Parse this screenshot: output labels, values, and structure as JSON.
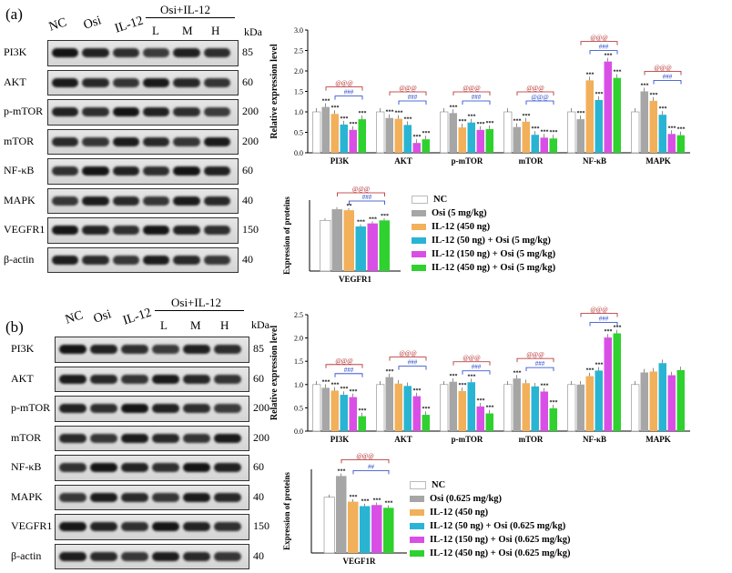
{
  "colors": {
    "nc": "#ffffff",
    "osi": "#a6a6a6",
    "il12": "#f2b05a",
    "low": "#2ab4d3",
    "mid": "#d94fe6",
    "high": "#2fd12f",
    "red_bracket": "#b02020",
    "blue_bracket": "#1a3cc9"
  },
  "panel_a": {
    "label": "(a)",
    "lanes": [
      "NC",
      "Osi",
      "IL-12",
      "L",
      "M",
      "H"
    ],
    "group_label": "Osi+IL-12",
    "kda_label": "kDa",
    "blots": [
      {
        "name": "PI3K",
        "kda": "85"
      },
      {
        "name": "AKT",
        "kda": "60"
      },
      {
        "name": "p-mTOR",
        "kda": "200"
      },
      {
        "name": "mTOR",
        "kda": "200"
      },
      {
        "name": "NF-κB",
        "kda": "60"
      },
      {
        "name": "MAPK",
        "kda": "40"
      },
      {
        "name": "VEGFR1",
        "kda": "150"
      },
      {
        "name": "β-actin",
        "kda": "40"
      }
    ],
    "legend": [
      "NC",
      "Osi (5 mg/kg)",
      "IL-12 (450 ng)",
      "IL-12 (50 ng) + Osi (5 mg/kg)",
      "IL-12 (150 ng) + Osi (5 mg/kg)",
      "IL-12 (450 ng) + Osi (5 mg/kg)"
    ]
  },
  "panel_b": {
    "label": "(b)",
    "lanes": [
      "NC",
      "Osi",
      "IL-12",
      "L",
      "M",
      "H"
    ],
    "group_label": "Osi+IL-12",
    "kda_label": "kDa",
    "blots": [
      {
        "name": "PI3K",
        "kda": "85"
      },
      {
        "name": "AKT",
        "kda": "60"
      },
      {
        "name": "p-mTOR",
        "kda": "200"
      },
      {
        "name": "mTOR",
        "kda": "200"
      },
      {
        "name": "NF-κB",
        "kda": "60"
      },
      {
        "name": "MAPK",
        "kda": "40"
      },
      {
        "name": "VEGFR1",
        "kda": "150"
      },
      {
        "name": "β-actin",
        "kda": "40"
      }
    ],
    "legend": [
      "NC",
      "Osi (0.625 mg/kg)",
      "IL-12 (450 ng)",
      "IL-12 (50 ng) + Osi (0.625 mg/kg)",
      "IL-12 (150 ng) + Osi (0.625 mg/kg)",
      "IL-12 (450 ng) + Osi (0.625 mg/kg)"
    ]
  },
  "chart_data": [
    {
      "id": "a_main",
      "type": "bar",
      "ylabel": "Relative expression level",
      "ylim": [
        0,
        3.0
      ],
      "yticks": [
        "0.0",
        "0.5",
        "1.0",
        "1.5",
        "2.0",
        "2.5",
        "3.0"
      ],
      "categories": [
        "PI3K",
        "AKT",
        "p-mTOR",
        "mTOR",
        "NF-κB",
        "MAPK"
      ],
      "series": [
        {
          "name": "NC",
          "values": [
            1.0,
            1.0,
            1.0,
            1.0,
            1.0,
            1.0
          ]
        },
        {
          "name": "Osi",
          "values": [
            1.12,
            0.85,
            0.97,
            0.63,
            0.82,
            1.5
          ]
        },
        {
          "name": "IL-12",
          "values": [
            0.95,
            0.83,
            0.62,
            0.76,
            1.77,
            1.27
          ]
        },
        {
          "name": "L",
          "values": [
            0.69,
            0.68,
            0.74,
            0.44,
            1.29,
            0.93
          ]
        },
        {
          "name": "M",
          "values": [
            0.56,
            0.24,
            0.56,
            0.37,
            2.23,
            0.46
          ]
        },
        {
          "name": "H",
          "values": [
            0.82,
            0.33,
            0.58,
            0.35,
            1.83,
            0.43
          ]
        }
      ],
      "red_marks": [
        "@@@",
        "@@@",
        "@@@",
        "@@@",
        "@@@",
        "@@@"
      ],
      "blue_marks": [
        "###",
        "###",
        "###",
        "@@@",
        "###",
        "###"
      ],
      "bar_stars": [
        [
          "",
          "***",
          "***",
          "***",
          "***",
          "***"
        ],
        [
          "",
          "***",
          "***",
          "***",
          "***",
          "***"
        ],
        [
          "",
          "***",
          "***",
          "***",
          "***",
          "***"
        ],
        [
          "",
          "***",
          "***",
          "***",
          "***",
          "***"
        ],
        [
          "",
          "***",
          "***",
          "***",
          "***",
          "***"
        ],
        [
          "",
          "***",
          "***",
          "***",
          "***",
          "***"
        ]
      ]
    },
    {
      "id": "a_vegfr",
      "type": "bar",
      "ylabel": "Expression of proteins",
      "categories": [
        "VEGFR1"
      ],
      "ylim": [
        0,
        1.4
      ],
      "series": [
        {
          "name": "NC",
          "values": [
            1.0
          ]
        },
        {
          "name": "Osi",
          "values": [
            1.22
          ]
        },
        {
          "name": "IL-12",
          "values": [
            1.2
          ]
        },
        {
          "name": "L",
          "values": [
            0.88
          ]
        },
        {
          "name": "M",
          "values": [
            0.94
          ]
        },
        {
          "name": "H",
          "values": [
            1.0
          ]
        }
      ],
      "red_marks": [
        "@@@"
      ],
      "blue_marks": [
        "###"
      ],
      "bar_stars": [
        [
          "",
          "",
          "**",
          "***",
          "***",
          "***"
        ]
      ]
    },
    {
      "id": "b_main",
      "type": "bar",
      "ylabel": "Relative expression level",
      "ylim": [
        0,
        2.5
      ],
      "yticks": [
        "0.0",
        "0.5",
        "1.0",
        "1.5",
        "2.0",
        "2.5"
      ],
      "categories": [
        "PI3K",
        "AKT",
        "p-mTOR",
        "mTOR",
        "NF-κB",
        "MAPK"
      ],
      "series": [
        {
          "name": "NC",
          "values": [
            1.0,
            1.0,
            1.0,
            1.0,
            1.0,
            1.0
          ]
        },
        {
          "name": "Osi",
          "values": [
            0.93,
            1.16,
            1.06,
            1.13,
            1.0,
            1.26
          ]
        },
        {
          "name": "IL-12",
          "values": [
            0.87,
            1.02,
            0.86,
            1.03,
            1.18,
            1.28
          ]
        },
        {
          "name": "L",
          "values": [
            0.78,
            0.97,
            1.05,
            0.96,
            1.3,
            1.46
          ]
        },
        {
          "name": "M",
          "values": [
            0.73,
            0.75,
            0.53,
            0.85,
            2.01,
            1.2
          ]
        },
        {
          "name": "H",
          "values": [
            0.32,
            0.35,
            0.38,
            0.49,
            2.1,
            1.31
          ]
        }
      ],
      "red_marks": [
        "@@@",
        "@@@",
        "@@@",
        "@@@",
        "@@@",
        ""
      ],
      "blue_marks": [
        "###",
        "###",
        "###",
        "###",
        "###",
        ""
      ],
      "bar_stars": [
        [
          "",
          "***",
          "***",
          "***",
          "***",
          "***"
        ],
        [
          "",
          "***",
          "",
          "",
          "***",
          "***"
        ],
        [
          "",
          "***",
          "***",
          "***",
          "***",
          "***"
        ],
        [
          "",
          "***",
          "",
          "",
          "***",
          "***"
        ],
        [
          "",
          "",
          "***",
          "***",
          "***",
          "***"
        ],
        [
          "",
          "",
          "",
          "",
          "",
          ""
        ]
      ]
    },
    {
      "id": "b_vegfr",
      "type": "bar",
      "ylabel": "Expression of proteins",
      "categories": [
        "VEGF1R"
      ],
      "ylim": [
        0,
        1.5
      ],
      "series": [
        {
          "name": "NC",
          "values": [
            1.0
          ]
        },
        {
          "name": "Osi",
          "values": [
            1.38
          ]
        },
        {
          "name": "IL-12",
          "values": [
            0.92
          ]
        },
        {
          "name": "L",
          "values": [
            0.84
          ]
        },
        {
          "name": "M",
          "values": [
            0.86
          ]
        },
        {
          "name": "H",
          "values": [
            0.81
          ]
        }
      ],
      "red_marks": [
        "@@@"
      ],
      "blue_marks": [
        "##"
      ],
      "bar_stars": [
        [
          "",
          "***",
          "***",
          "***",
          "***",
          "***"
        ]
      ]
    }
  ]
}
